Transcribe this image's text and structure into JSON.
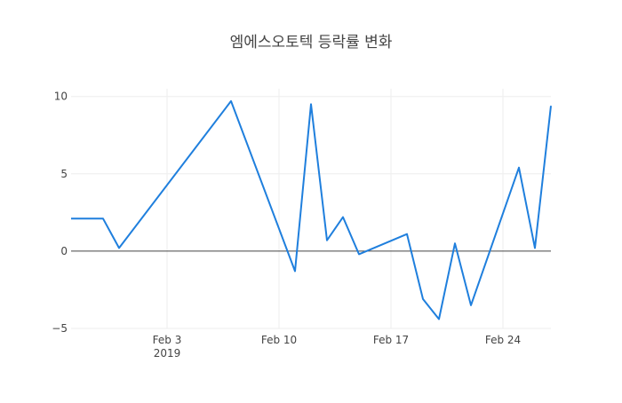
{
  "chart_data": {
    "type": "line",
    "title": "엠에스오토텍 등락률 변화",
    "xlabel": "",
    "ylabel": "",
    "x": [
      "2019-01-28",
      "2019-01-30",
      "2019-01-31",
      "2019-02-07",
      "2019-02-11",
      "2019-02-12",
      "2019-02-13",
      "2019-02-14",
      "2019-02-15",
      "2019-02-18",
      "2019-02-19",
      "2019-02-20",
      "2019-02-21",
      "2019-02-22",
      "2019-02-25",
      "2019-02-26",
      "2019-02-27"
    ],
    "series": [
      {
        "name": "",
        "values": [
          2.1,
          2.1,
          0.2,
          9.7,
          -1.3,
          9.5,
          0.7,
          2.2,
          -0.2,
          1.1,
          -3.1,
          -4.4,
          0.5,
          -3.5,
          5.4,
          0.2,
          9.4
        ]
      }
    ],
    "xlim": [
      "2019-01-28",
      "2019-02-27"
    ],
    "ylim": [
      -5,
      10.5
    ],
    "x_ticks": [
      {
        "date": "2019-02-03",
        "label": "Feb 3",
        "sublabel": "2019"
      },
      {
        "date": "2019-02-10",
        "label": "Feb 10"
      },
      {
        "date": "2019-02-17",
        "label": "Feb 17"
      },
      {
        "date": "2019-02-24",
        "label": "Feb 24"
      }
    ],
    "y_ticks": [
      {
        "value": 10,
        "label": "10"
      },
      {
        "value": 5,
        "label": "5"
      },
      {
        "value": 0,
        "label": "0"
      },
      {
        "value": -5,
        "label": "−5"
      }
    ],
    "grid": true,
    "legend": "none",
    "colors": {
      "line": "#1f7fdd",
      "grid": "#eeeeee",
      "zero": "#444444",
      "text": "#444444"
    }
  }
}
